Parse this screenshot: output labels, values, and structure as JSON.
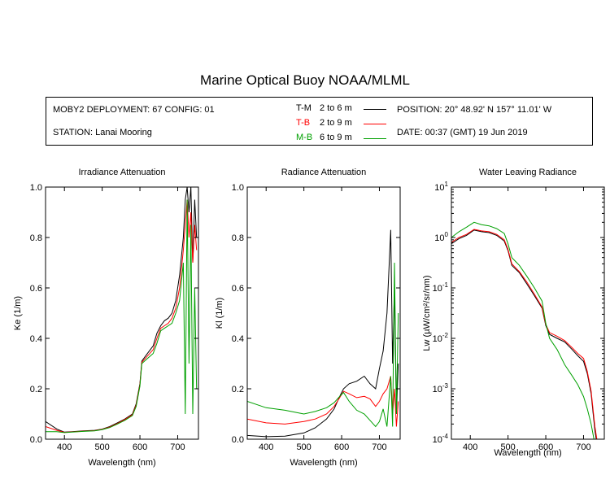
{
  "header": {
    "title": "Marine Optical Buoy NOAA/MLML"
  },
  "info": {
    "deployment": "MOBY2 DEPLOYMENT: 67 CONFIG: 01",
    "station": "STATION: Lanai Mooring",
    "position": "POSITION: 20° 48.92' N   157° 11.01' W",
    "date": "DATE: 00:37 (GMT) 19 Jun 2019"
  },
  "legend": [
    {
      "code": "T-M",
      "range": "2 to 6  m",
      "color": "#000000"
    },
    {
      "code": "T-B",
      "range": "2 to 9  m",
      "color": "#ff0000"
    },
    {
      "code": "M-B",
      "range": "6 to 9  m",
      "color": "#00a000"
    }
  ],
  "chart_data": [
    {
      "type": "line",
      "title": "Irradiance Attenuation",
      "xlabel": "Wavelength (nm)",
      "ylabel": "Ke  (1/m)",
      "xlim": [
        350,
        755
      ],
      "ylim": [
        0,
        1
      ],
      "xticks": [
        "400",
        "500",
        "600",
        "700"
      ],
      "yticks": [
        "0.0",
        "0.2",
        "0.4",
        "0.6",
        "0.8",
        "1.0"
      ],
      "series": [
        {
          "name": "T-M",
          "color": "#000000",
          "x": [
            350,
            380,
            400,
            420,
            450,
            480,
            500,
            520,
            540,
            560,
            580,
            590,
            600,
            605,
            620,
            635,
            645,
            655,
            665,
            675,
            685,
            695,
            705,
            715,
            720,
            725,
            730,
            735,
            740,
            745,
            750
          ],
          "y": [
            0.07,
            0.04,
            0.028,
            0.03,
            0.033,
            0.035,
            0.04,
            0.05,
            0.065,
            0.08,
            0.1,
            0.14,
            0.22,
            0.31,
            0.34,
            0.37,
            0.42,
            0.45,
            0.47,
            0.48,
            0.5,
            0.55,
            0.65,
            0.8,
            0.95,
            1.0,
            0.9,
            1.0,
            0.7,
            0.95,
            0.8
          ]
        },
        {
          "name": "T-B",
          "color": "#ff0000",
          "x": [
            350,
            380,
            400,
            420,
            450,
            480,
            500,
            520,
            540,
            560,
            580,
            590,
            600,
            605,
            620,
            635,
            645,
            655,
            665,
            675,
            685,
            695,
            705,
            715,
            720,
            725,
            730,
            735,
            740,
            745,
            750
          ],
          "y": [
            0.05,
            0.035,
            0.027,
            0.029,
            0.032,
            0.034,
            0.039,
            0.048,
            0.062,
            0.078,
            0.097,
            0.135,
            0.215,
            0.305,
            0.33,
            0.355,
            0.4,
            0.44,
            0.45,
            0.46,
            0.48,
            0.52,
            0.6,
            0.75,
            0.85,
            0.95,
            0.8,
            0.9,
            0.7,
            0.85,
            0.75
          ]
        },
        {
          "name": "M-B",
          "color": "#00a000",
          "x": [
            350,
            380,
            400,
            420,
            450,
            480,
            500,
            520,
            540,
            560,
            580,
            590,
            600,
            605,
            620,
            635,
            645,
            655,
            665,
            675,
            685,
            695,
            705,
            715,
            720,
            725,
            730,
            735,
            740,
            745,
            750
          ],
          "y": [
            0.03,
            0.03,
            0.026,
            0.028,
            0.031,
            0.033,
            0.038,
            0.046,
            0.06,
            0.075,
            0.094,
            0.13,
            0.21,
            0.3,
            0.32,
            0.34,
            0.38,
            0.43,
            0.44,
            0.45,
            0.46,
            0.5,
            0.55,
            0.7,
            0.1,
            0.95,
            0.3,
            0.85,
            0.1,
            0.6,
            0.2
          ]
        }
      ]
    },
    {
      "type": "line",
      "title": "Radiance Attenuation",
      "xlabel": "Wavelength (nm)",
      "ylabel": "Kl  (1/m)",
      "xlim": [
        350,
        755
      ],
      "ylim": [
        0,
        1
      ],
      "xticks": [
        "400",
        "500",
        "600",
        "700"
      ],
      "yticks": [
        "0.0",
        "0.2",
        "0.4",
        "0.6",
        "0.8",
        "1.0"
      ],
      "series": [
        {
          "name": "T-M",
          "color": "#000000",
          "x": [
            350,
            400,
            450,
            500,
            530,
            560,
            580,
            595,
            605,
            620,
            640,
            660,
            675,
            690,
            700,
            710,
            720,
            730,
            735,
            740,
            745,
            750
          ],
          "y": [
            0.015,
            0.01,
            0.012,
            0.025,
            0.045,
            0.08,
            0.12,
            0.17,
            0.2,
            0.22,
            0.23,
            0.25,
            0.22,
            0.2,
            0.28,
            0.35,
            0.5,
            0.83,
            0.3,
            0.6,
            0.1,
            0.3
          ]
        },
        {
          "name": "T-B",
          "color": "#ff0000",
          "x": [
            350,
            400,
            450,
            500,
            530,
            560,
            580,
            595,
            605,
            620,
            640,
            660,
            675,
            690,
            700,
            710,
            720,
            730,
            735,
            740,
            745,
            750
          ],
          "y": [
            0.08,
            0.065,
            0.06,
            0.07,
            0.08,
            0.1,
            0.13,
            0.165,
            0.19,
            0.18,
            0.165,
            0.17,
            0.16,
            0.13,
            0.15,
            0.18,
            0.2,
            0.25,
            0.1,
            0.2,
            0.05,
            0.15
          ]
        },
        {
          "name": "M-B",
          "color": "#00a000",
          "x": [
            350,
            400,
            450,
            500,
            530,
            560,
            580,
            595,
            605,
            620,
            640,
            660,
            675,
            690,
            700,
            710,
            720,
            730,
            735,
            740,
            745,
            750
          ],
          "y": [
            0.15,
            0.125,
            0.115,
            0.1,
            0.11,
            0.125,
            0.145,
            0.17,
            0.185,
            0.15,
            0.115,
            0.1,
            0.075,
            0.05,
            0.07,
            0.12,
            0.05,
            0.25,
            0.05,
            0.7,
            0.1,
            0.5
          ]
        }
      ]
    },
    {
      "type": "line",
      "title": "Water Leaving Radiance",
      "xlabel": "Wavelength (nm)",
      "ylabel": "Lw  (µW/cm²/sr/nm)",
      "xscale": "linear",
      "yscale": "log",
      "xlim": [
        350,
        755
      ],
      "ylim": [
        0.0001,
        10
      ],
      "xticks": [
        "400",
        "500",
        "600",
        "700"
      ],
      "yticks": [
        "10^-4",
        "10^-3",
        "10^-2",
        "10^-1",
        "10^0",
        "10^1"
      ],
      "series": [
        {
          "name": "T-M",
          "color": "#000000",
          "x": [
            350,
            370,
            390,
            410,
            430,
            450,
            470,
            490,
            500,
            510,
            530,
            550,
            570,
            590,
            600,
            610,
            630,
            650,
            670,
            685,
            700,
            710,
            720,
            730,
            740
          ],
          "y": [
            0.75,
            0.95,
            1.1,
            1.4,
            1.3,
            1.25,
            1.1,
            0.85,
            0.55,
            0.28,
            0.2,
            0.12,
            0.07,
            0.04,
            0.018,
            0.012,
            0.01,
            0.0085,
            0.006,
            0.0045,
            0.0035,
            0.002,
            0.0008,
            0.00015,
            5e-05
          ]
        },
        {
          "name": "T-B",
          "color": "#ff0000",
          "x": [
            350,
            370,
            390,
            410,
            430,
            450,
            470,
            490,
            500,
            510,
            530,
            550,
            570,
            590,
            600,
            610,
            630,
            650,
            670,
            685,
            700,
            710,
            720,
            730,
            740
          ],
          "y": [
            0.8,
            1.0,
            1.15,
            1.45,
            1.35,
            1.3,
            1.15,
            0.9,
            0.58,
            0.3,
            0.21,
            0.13,
            0.075,
            0.042,
            0.019,
            0.013,
            0.011,
            0.009,
            0.0065,
            0.005,
            0.004,
            0.0022,
            0.0009,
            0.00018,
            6e-05
          ]
        },
        {
          "name": "M-B",
          "color": "#00a000",
          "x": [
            350,
            370,
            390,
            410,
            430,
            450,
            470,
            490,
            500,
            510,
            530,
            550,
            570,
            590,
            600,
            610,
            630,
            650,
            670,
            685,
            700,
            710,
            720,
            730,
            740
          ],
          "y": [
            1.0,
            1.3,
            1.6,
            2.0,
            1.8,
            1.7,
            1.5,
            1.2,
            0.75,
            0.4,
            0.28,
            0.17,
            0.1,
            0.055,
            0.02,
            0.01,
            0.006,
            0.003,
            0.0018,
            0.0012,
            0.0007,
            0.0004,
            0.0002,
            8e-05,
            3e-05
          ]
        }
      ]
    }
  ]
}
